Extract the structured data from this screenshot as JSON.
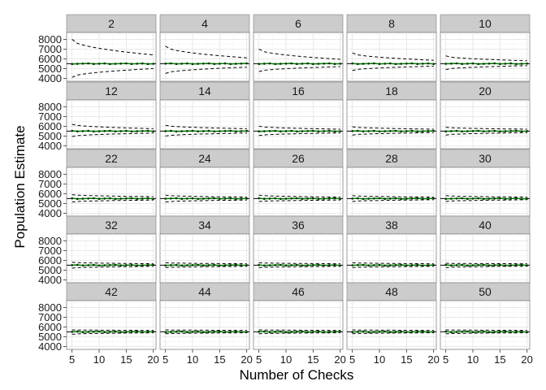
{
  "chart_data": {
    "type": "line",
    "layout": "facet-grid",
    "xlabel": "Number of Checks",
    "ylabel": "Population Estimate",
    "facet_labels": [
      "2",
      "4",
      "6",
      "8",
      "10",
      "12",
      "14",
      "16",
      "18",
      "20",
      "22",
      "24",
      "26",
      "28",
      "30",
      "32",
      "34",
      "36",
      "38",
      "40",
      "42",
      "44",
      "46",
      "48",
      "50"
    ],
    "facet_columns": 5,
    "facet_rows": 5,
    "x_range": [
      4,
      20.5
    ],
    "y_range": [
      3700,
      8700
    ],
    "x_ticks": [
      5,
      10,
      15,
      20
    ],
    "x_tick_labels": [
      "5",
      "10",
      "15",
      "20"
    ],
    "y_ticks": [
      4000,
      5000,
      6000,
      7000,
      8000
    ],
    "y_tick_labels": [
      "4000",
      "5000",
      "6000",
      "7000",
      "8000"
    ],
    "grid": true,
    "reference_value": 5500,
    "estimate_center": 5500,
    "estimate_color": "#007f00",
    "interval_color": "#000000",
    "panel_background": "#ffffff",
    "strip_background": "#cccccc",
    "facet_upper_at_5": [
      8000,
      7300,
      7000,
      6600,
      6300,
      6200,
      6100,
      6000,
      5950,
      5900,
      5900,
      5850,
      5850,
      5800,
      5800,
      5800,
      5750,
      5750,
      5750,
      5700,
      5700,
      5700,
      5700,
      5700,
      5700
    ],
    "facet_upper_at_20": [
      6400,
      6100,
      5950,
      5850,
      5800,
      5750,
      5750,
      5700,
      5700,
      5700,
      5700,
      5650,
      5650,
      5650,
      5650,
      5650,
      5650,
      5650,
      5650,
      5650,
      5650,
      5650,
      5650,
      5650,
      5650
    ],
    "facet_lower_at_5": [
      4100,
      4500,
      4700,
      4800,
      4900,
      4950,
      5000,
      5050,
      5100,
      5100,
      5150,
      5150,
      5200,
      5200,
      5200,
      5200,
      5250,
      5250,
      5250,
      5250,
      5250,
      5300,
      5300,
      5300,
      5300
    ],
    "facet_lower_at_20": [
      5000,
      5150,
      5200,
      5250,
      5300,
      5300,
      5300,
      5320,
      5350,
      5350,
      5350,
      5350,
      5350,
      5380,
      5380,
      5380,
      5380,
      5380,
      5380,
      5400,
      5400,
      5400,
      5400,
      5400,
      5400
    ]
  }
}
